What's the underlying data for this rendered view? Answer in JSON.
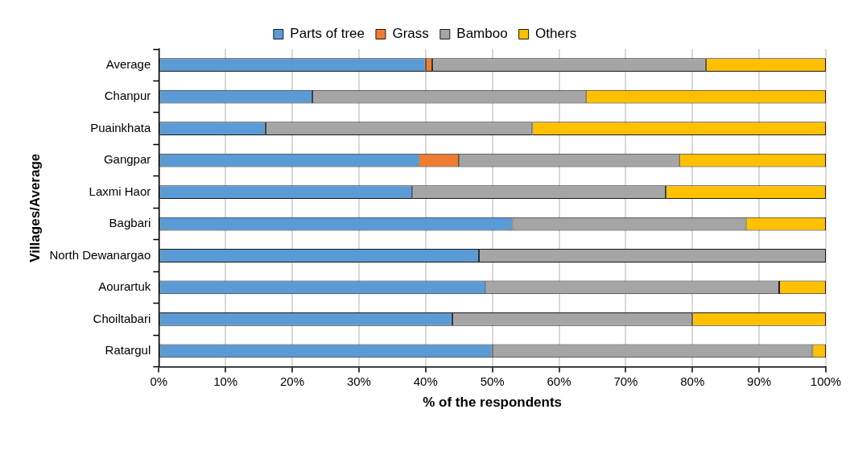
{
  "chart_data": {
    "type": "bar",
    "orientation": "horizontal",
    "stacked": true,
    "xlabel": "% of the respondents",
    "ylabel": "Villages/Average",
    "categories": [
      "Average",
      "Chanpur",
      "Puainkhata",
      "Gangpar",
      "Laxmi Haor",
      "Bagbari",
      "North Dewanargao",
      "Aourartuk",
      "Choiltabari",
      "Ratargul"
    ],
    "series": [
      {
        "name": "Parts of tree",
        "color": "#5b9bd5",
        "values": [
          40,
          23,
          16,
          39,
          38,
          53,
          48,
          49,
          44,
          50
        ]
      },
      {
        "name": "Grass",
        "color": "#ed7d31",
        "values": [
          1,
          0,
          0,
          6,
          0,
          0,
          0,
          0,
          0,
          0
        ]
      },
      {
        "name": "Bamboo",
        "color": "#a5a5a5",
        "values": [
          41,
          41,
          40,
          33,
          38,
          35,
          52,
          44,
          36,
          48
        ]
      },
      {
        "name": "Others",
        "color": "#ffc000",
        "values": [
          18,
          36,
          44,
          22,
          24,
          12,
          0,
          7,
          20,
          2
        ]
      }
    ],
    "xlim": [
      0,
      100
    ],
    "xticks": [
      {
        "value": 0,
        "label": "0%"
      },
      {
        "value": 10,
        "label": "10%"
      },
      {
        "value": 20,
        "label": "20%"
      },
      {
        "value": 30,
        "label": "30%"
      },
      {
        "value": 40,
        "label": "40%"
      },
      {
        "value": 50,
        "label": "50%"
      },
      {
        "value": 60,
        "label": "60%"
      },
      {
        "value": 70,
        "label": "70%"
      },
      {
        "value": 80,
        "label": "80%"
      },
      {
        "value": 90,
        "label": "90%"
      },
      {
        "value": 100,
        "label": "100%"
      }
    ],
    "grid": "x",
    "legend": "top"
  }
}
